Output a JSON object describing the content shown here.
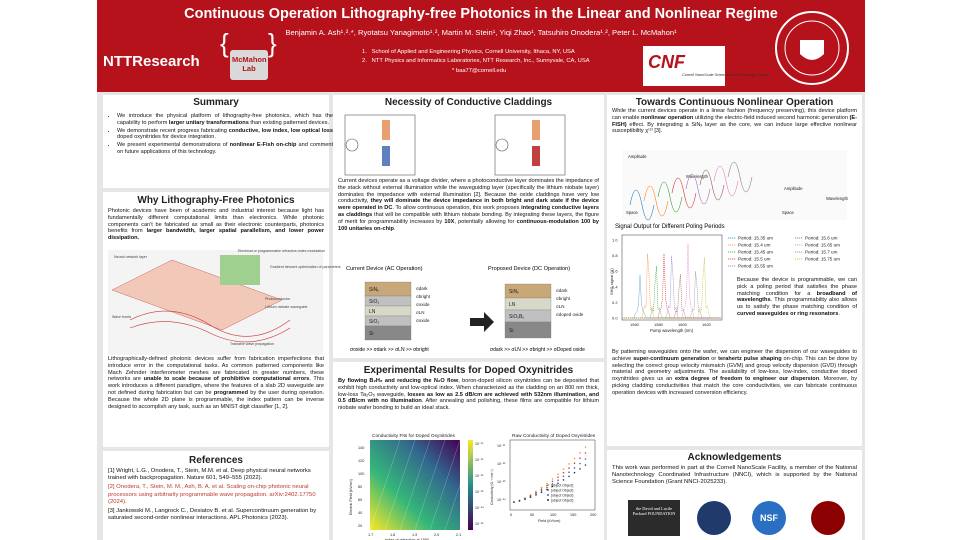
{
  "header": {
    "title": "Continuous Operation Lithography-free Photonics in the Linear and Nonlinear Regime",
    "authors": "Benjamin A. Ash¹˒²˒*, Ryotatsu Yanagimoto¹˒², Martin M. Stein¹, Yiqi Zhao¹, Tatsuhiro Onodera¹˒², Peter L. McMahon¹",
    "affiliations": [
      "1.   School of Applied and Engineering Physics, Cornell University, Ithaca, NY, USA",
      "2.   NTT Physics and Informatics Laboratories, NTT Research, Inc., Sunnyvale, CA, USA"
    ],
    "email": "* baa77@cornell.edu",
    "ntt": "NTTResearch",
    "lab": "McMahon Lab",
    "cnf": "CNF",
    "cnf_sub": "Cornell NanoScale Science and Technology Facility"
  },
  "summary": {
    "title": "Summary",
    "bullets": [
      [
        "We introduce the physical platform of lithography-free photonics, which has the capability to perform ",
        {
          "bold": "larger unitary transformations"
        },
        " than existing patterned devices."
      ],
      [
        "We demonstrate recent progress fabricating ",
        {
          "bold": "conductive, low index, low optical loss"
        },
        " doped oxynitrides for device integration."
      ],
      [
        "We present experimental demonstrations of ",
        {
          "bold": "nonlinear E-Fish on-chip"
        },
        " and comment on future applications of this technology."
      ]
    ]
  },
  "why": {
    "title": "Why Lithography-Free Photonics",
    "para1": [
      "Photonic devices have been of academic and industrial interest because light has fundamentally different computational limits than electronics. While photonic components can't be fabricated as small as their electronic counterparts, photonics benefits from ",
      {
        "bold": "larger bandwidth, larger spatial parallelism, and lower power dissipation."
      }
    ],
    "figure_labels": [
      "Neural network layer",
      "Electrical or programmable refractive-index modulation",
      "Gradient descent optimization of parameters",
      "Photoconductor",
      "Lithium niobate waveguide",
      "Wave fronts",
      "Trainable wave propagation"
    ],
    "para2": [
      "Lithographically-defined photonic devices suffer from fabrication imperfections that introduce error in the computational tasks. As common patterned components like Mach Zehnder interferometer meshes are fabricated in greater numbers, these networks are ",
      {
        "bold": "unable to scale because of prohibitive computational errors"
      },
      ".  This work introduces a different paradigm, where the features of a slab 2D waveguide are not defined during fabrication but can be ",
      {
        "bold": "programmed"
      },
      " by the user during operation.  Because the whole 2D plane is programmable, the index pattern can be inverse designed to accomplish any task, such as an MNIST digit classifier [1, 2]."
    ]
  },
  "references": {
    "title": "References",
    "items": [
      "[1] Wright, L.G., Onodera, T., Stein, M.M. et al. Deep physical neural networks trained with backpropagation. Nature 601, 549–555 (2022).",
      "[2] Onodera, T., Stein, M. M., Ash, B. A. et al. Scaling on-chip photonic neural processors using arbitrarily programmable wave propagation. arXiv:2402.17750 (2024).",
      "[3] Jankowski M., Langrock C., Desiatov B. et al. Supercontinuum generation by saturated second-order nonlinear interactions. APL Photonics (2023)."
    ]
  },
  "cladding": {
    "title": "Necessity of Conductive Claddings",
    "para": [
      "Current devices operate as a voltage divider, where a photoconductive layer dominates the impedance of the stack without external illumination while the waveguiding layer (specifically the lithium niobate layer) dominates the impedance with external illumination [2].  Because the oxide claddings have very low conductivity, ",
      {
        "bold": "they will dominate the device impedance in both bright and dark state if the device were operated in DC"
      },
      ".  To allow continuous operation, this work proposes ",
      {
        "bold": "integrating conductive layers as claddings"
      },
      " that will be compatible with lithium niobate bonding.  By integrating these layers, the figure of merit for programmability increases by ",
      {
        "bold": "10X"
      },
      ", potentially allowing for ",
      {
        "bold": "continuous-modulation 100 by 100 unitaries on-chip"
      },
      "."
    ],
    "left_title": "Current Device (AC Operation)",
    "right_title": "Proposed Device (DC Operation)",
    "left_layers": [
      "SiNₓ",
      "SiO₂",
      "LN",
      "SiO₂",
      "Si"
    ],
    "right_layers": [
      "SiNₓ",
      "LN",
      "SiOₓBᵧ",
      "Si"
    ],
    "left_sigmas": [
      "σdark",
      "σbright",
      "σoxide",
      "σLN",
      "σoxide"
    ],
    "right_sigmas": [
      "σdark",
      "σbright",
      "σLN",
      "σdoped oxide"
    ],
    "left_relation": "σoxide >> σdark >> σLN >> σbright",
    "right_relation": "σdark >> σLN >> σbright >> σDoped oxide"
  },
  "experimental": {
    "title": "Experimental Results for Doped Oxynitrides",
    "para": [
      {
        "bold": "By flowing B₂H₆ and reducing the N₂O flow"
      },
      ", boron-doped silicon oxynitrides can be deposited that exhibit high conductivity and low-optical index.  When characterized as the cladding on an 800 nm thick, low-loss Ta₂O₅ waveguide, ",
      {
        "bold": "losses as low as 2.5 dB/cm are achieved with 532nm illumination, and 0.5 dB/cm with no illumination"
      },
      ".  After annealing and polishing, these films are compatible for lithium niobate wafer bonding to build an ideal stack."
    ],
    "plot1": {
      "title": "Conductivity Fits for Doped Oxynitrides",
      "xlabel": "Index of refraction at 1550",
      "ylabel": "Electric Field (kV/cm)",
      "xticks": [
        "1.7",
        "1.8",
        "1.9",
        "2.0",
        "2.1"
      ],
      "yticks": [
        "20",
        "40",
        "60",
        "80",
        "100",
        "120",
        "140"
      ],
      "cticks": [
        "10⁻¹⁰",
        "10⁻¹¹",
        "10⁻¹²",
        "10⁻¹³",
        "10⁻¹⁴",
        "10⁻¹⁵"
      ]
    },
    "plot2": {
      "title": "Raw Conductivity of Doped Oxynitrides",
      "xlabel": "Field (kV/cm)",
      "ylabel": "Conductivity (Ω⁻¹·cm⁻¹)",
      "xticks": [
        "0",
        "50",
        "100",
        "150",
        "200"
      ],
      "yticks": [
        "10⁻¹¹",
        "10⁻¹²",
        "10⁻¹³",
        "10⁻¹⁴"
      ],
      "legend": [
        {
          "name": "n = 1.84 at 1550nm",
          "color": "#e0a020"
        },
        {
          "name": "n = 1.95 at 1550nm",
          "color": "#d04040"
        },
        {
          "name": "n = 1.87 at 1550nm",
          "color": "#4060c0"
        },
        {
          "name": "n = 1.84 at 1550nm",
          "color": "#303030"
        }
      ]
    }
  },
  "nonlinear": {
    "title": "Towards Continuous Nonlinear Operation",
    "para1": [
      "While the current devices operate in a linear fashion (frequency preserving), this device platform can enable ",
      {
        "bold": "nonlinear operation"
      },
      " utilizing the electric-field induced second harmonic generation ",
      {
        "bold": "(E-FISH)"
      },
      " effect.  By integrating a SiNₓ layer as the core, we can induce large effective nonlinear susceptibility χ⁽²⁾ [3]."
    ],
    "figure_labels": [
      "Amplitude",
      "Wavelength",
      "Space",
      "Amplitude",
      "Space",
      "Wavelength"
    ],
    "chart": {
      "title": "Signal Output for Different Poling Periods",
      "xlabel": "Pump wavelength (nm)",
      "ylabel": "SHG signal (V)",
      "xticks": [
        "1560",
        "1580",
        "1600",
        "1620"
      ],
      "yticks": [
        "0.0",
        "0.2",
        "0.4",
        "0.6",
        "0.8",
        "1.0"
      ],
      "series": [
        {
          "name": "Period: 15.35 um",
          "color": "#1f77b4"
        },
        {
          "name": "Period: 15.4 um",
          "color": "#ff7f0e"
        },
        {
          "name": "Period: 15.45 um",
          "color": "#2ca02c"
        },
        {
          "name": "Period: 15.5 um",
          "color": "#d62728"
        },
        {
          "name": "Period: 15.55 um",
          "color": "#9467bd"
        },
        {
          "name": "Period: 15.6 um",
          "color": "#8c564b"
        },
        {
          "name": "Period: 15.65 um",
          "color": "#e377c2"
        },
        {
          "name": "Period: 15.7 um",
          "color": "#7f7f7f"
        },
        {
          "name": "Period: 15.75 um",
          "color": "#bcbd22"
        }
      ]
    },
    "side": [
      "Because the device is programmable, we can pick a poling period that satisfies the phase matching condition for a ",
      {
        "bold": "broadband of wavelengths"
      },
      ".  This programmability also allows us to satisfy the phase matching condition of ",
      {
        "bold": "curved waveguides or ring resonators"
      },
      "."
    ],
    "para2": [
      "By patterning waveguides onto the wafer, we can engineer the dispersion of our waveguides to achieve ",
      {
        "bold": "super-continuum generation"
      },
      " or ",
      {
        "bold": "terahertz pulse shaping"
      },
      " on-chip.  This can be done by selecting the correct group velocity mismatch (GVM) and group velocity dispersion (GVD) through material and geometry adjustments.  The availability of low-loss, low-index, conductive doped oxynitrides gives us an ",
      {
        "bold": "extra degree of freedom to engineer our dispersion"
      },
      ".  Moreover, by picking cladding conductivities that match the core conductivities, we can fabricate continuous operation devices with increased conversion efficiency."
    ]
  },
  "acknowledgements": {
    "title": "Acknowledgements",
    "text": "This work was performed in part at the Cornell NanoScale Facility, a member of the National Nanotechnology Coordinated Infrastructure (NNCI), which is supported by the National Science Foundation (Grant NNCI-2025233).",
    "logos": [
      "the David and Lucile Packard FOUNDATION",
      "NSF"
    ]
  }
}
